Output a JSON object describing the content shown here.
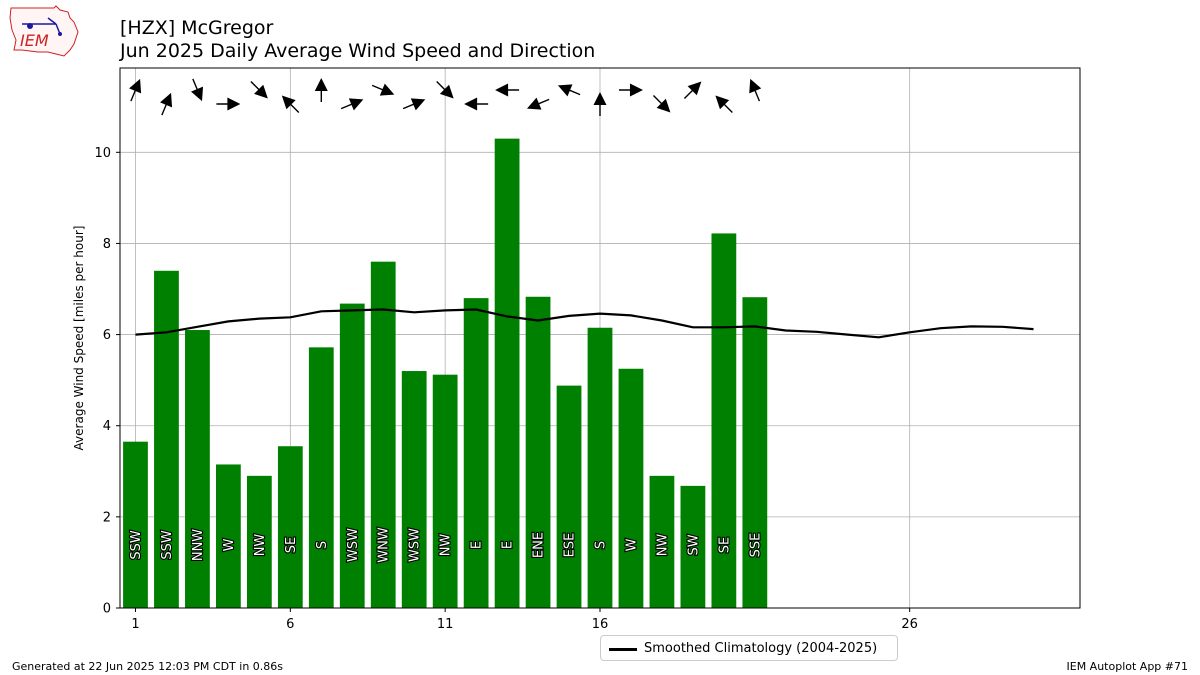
{
  "header": {
    "title_line1": "[HZX] McGregor",
    "title_line2": "Jun 2025 Daily Average Wind Speed and Direction"
  },
  "logo": {
    "text": "IEM",
    "color": "#cc2222"
  },
  "footer": {
    "left": "Generated at 22 Jun 2025 12:03 PM CDT in 0.86s",
    "right": "IEM Autoplot App #71"
  },
  "legend": {
    "label": "Smoothed Climatology (2004-2025)"
  },
  "colors": {
    "bar": "#008000",
    "climatology": "#000000",
    "grid": "#b0b0b0"
  },
  "chart_data": {
    "type": "bar",
    "ylabel": "Average Wind Speed [miles per hour]",
    "xlim": [
      0.5,
      31.5
    ],
    "ylim": [
      0,
      11.85
    ],
    "xticks": [
      1,
      6,
      11,
      16,
      26
    ],
    "yticks": [
      0,
      2,
      4,
      6,
      8,
      10
    ],
    "grid": true,
    "legend_position": "bottom-center",
    "days": [
      1,
      2,
      3,
      4,
      5,
      6,
      7,
      8,
      9,
      10,
      11,
      12,
      13,
      14,
      15,
      16,
      17,
      18,
      19,
      20,
      21
    ],
    "values": [
      3.65,
      7.4,
      6.1,
      3.15,
      2.9,
      3.55,
      5.72,
      6.68,
      7.6,
      5.2,
      5.12,
      6.8,
      10.3,
      6.83,
      4.88,
      6.15,
      5.25,
      2.9,
      2.68,
      8.22,
      6.82
    ],
    "directions": [
      "SSW",
      "SSW",
      "NNW",
      "W",
      "NW",
      "SE",
      "S",
      "WSW",
      "WNW",
      "WSW",
      "NW",
      "E",
      "E",
      "ENE",
      "ESE",
      "S",
      "W",
      "NW",
      "SW",
      "SE",
      "SSE"
    ],
    "climatology": {
      "name": "Smoothed Climatology (2004-2025)",
      "days": [
        1,
        2,
        3,
        4,
        5,
        6,
        7,
        8,
        9,
        10,
        11,
        12,
        13,
        14,
        15,
        16,
        17,
        18,
        19,
        20,
        21,
        22,
        23,
        24,
        25,
        26,
        27,
        28,
        29,
        30
      ],
      "values": [
        6.0,
        6.05,
        6.17,
        6.29,
        6.35,
        6.38,
        6.51,
        6.53,
        6.55,
        6.49,
        6.53,
        6.55,
        6.4,
        6.31,
        6.41,
        6.46,
        6.42,
        6.31,
        6.16,
        6.16,
        6.18,
        6.09,
        6.06,
        6.0,
        5.94,
        6.05,
        6.14,
        6.18,
        6.17,
        6.12
      ]
    }
  }
}
